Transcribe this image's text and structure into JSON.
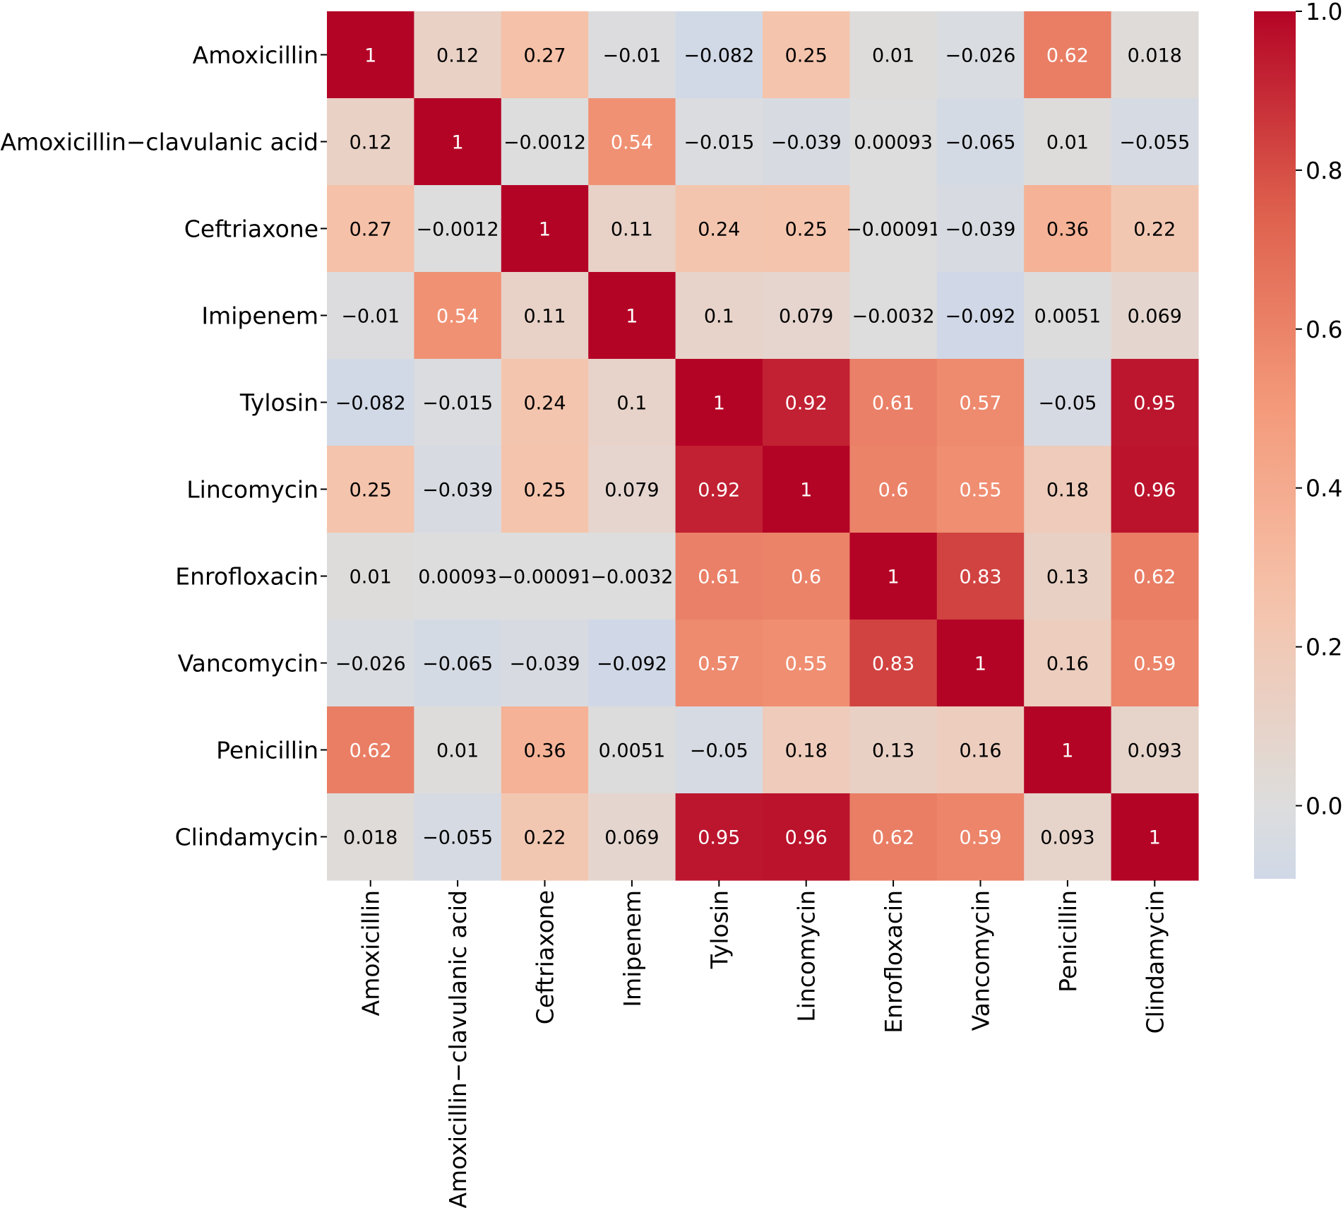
{
  "chart_data": {
    "type": "heatmap",
    "title": "",
    "xlabel": "",
    "ylabel": "",
    "rows": [
      "Amoxicillin",
      "Amoxicillin−clavulanic acid",
      "Ceftriaxone",
      "Imipenem",
      "Tylosin",
      "Lincomycin",
      "Enrofloxacin",
      "Vancomycin",
      "Penicillin",
      "Clindamycin"
    ],
    "columns": [
      "Amoxicillin",
      "Amoxicillin−clavulanic acid",
      "Ceftriaxone",
      "Imipenem",
      "Tylosin",
      "Lincomycin",
      "Enrofloxacin",
      "Vancomycin",
      "Penicillin",
      "Clindamycin"
    ],
    "values": [
      [
        1,
        0.12,
        0.27,
        -0.01,
        -0.082,
        0.25,
        0.01,
        -0.026,
        0.62,
        0.018
      ],
      [
        0.12,
        1,
        -0.0012,
        0.54,
        -0.015,
        -0.039,
        0.00093,
        -0.065,
        0.01,
        -0.055
      ],
      [
        0.27,
        -0.0012,
        1,
        0.11,
        0.24,
        0.25,
        -0.00091,
        -0.039,
        0.36,
        0.22
      ],
      [
        -0.01,
        0.54,
        0.11,
        1,
        0.1,
        0.079,
        -0.0032,
        -0.092,
        0.0051,
        0.069
      ],
      [
        -0.082,
        -0.015,
        0.24,
        0.1,
        1,
        0.92,
        0.61,
        0.57,
        -0.05,
        0.95
      ],
      [
        0.25,
        -0.039,
        0.25,
        0.079,
        0.92,
        1,
        0.6,
        0.55,
        0.18,
        0.96
      ],
      [
        0.01,
        0.00093,
        -0.00091,
        -0.0032,
        0.61,
        0.6,
        1,
        0.83,
        0.13,
        0.62
      ],
      [
        -0.026,
        -0.065,
        -0.039,
        -0.092,
        0.57,
        0.55,
        0.83,
        1,
        0.16,
        0.59
      ],
      [
        0.62,
        0.01,
        0.36,
        0.0051,
        -0.05,
        0.18,
        0.13,
        0.16,
        1,
        0.093
      ],
      [
        0.018,
        -0.055,
        0.22,
        0.069,
        0.95,
        0.96,
        0.62,
        0.59,
        0.093,
        1
      ]
    ],
    "labels": [
      [
        "1",
        "0.12",
        "0.27",
        "−0.01",
        "−0.082",
        "0.25",
        "0.01",
        "−0.026",
        "0.62",
        "0.018"
      ],
      [
        "0.12",
        "1",
        "−0.0012",
        "0.54",
        "−0.015",
        "−0.039",
        "0.00093",
        "−0.065",
        "0.01",
        "−0.055"
      ],
      [
        "0.27",
        "−0.0012",
        "1",
        "0.11",
        "0.24",
        "0.25",
        "−0.00091",
        "−0.039",
        "0.36",
        "0.22"
      ],
      [
        "−0.01",
        "0.54",
        "0.11",
        "1",
        "0.1",
        "0.079",
        "−0.0032",
        "−0.092",
        "0.0051",
        "0.069"
      ],
      [
        "−0.082",
        "−0.015",
        "0.24",
        "0.1",
        "1",
        "0.92",
        "0.61",
        "0.57",
        "−0.05",
        "0.95"
      ],
      [
        "0.25",
        "−0.039",
        "0.25",
        "0.079",
        "0.92",
        "1",
        "0.6",
        "0.55",
        "0.18",
        "0.96"
      ],
      [
        "0.01",
        "0.00093",
        "−0.00091",
        "−0.0032",
        "0.61",
        "0.6",
        "1",
        "0.83",
        "0.13",
        "0.62"
      ],
      [
        "−0.026",
        "−0.065",
        "−0.039",
        "−0.092",
        "0.57",
        "0.55",
        "0.83",
        "1",
        "0.16",
        "0.59"
      ],
      [
        "0.62",
        "0.01",
        "0.36",
        "0.0051",
        "−0.05",
        "0.18",
        "0.13",
        "0.16",
        "1",
        "0.093"
      ],
      [
        "0.018",
        "−0.055",
        "0.22",
        "0.069",
        "0.95",
        "0.96",
        "0.62",
        "0.59",
        "0.093",
        "1"
      ]
    ],
    "colormap": "coolwarm",
    "colorbar": {
      "vmin": -0.092,
      "vmax": 1.0,
      "ticks": [
        0.0,
        0.2,
        0.4,
        0.6,
        0.8,
        1.0
      ],
      "tick_labels": [
        "0.0",
        "0.2",
        "0.4",
        "0.6",
        "0.8",
        "1.0"
      ],
      "position": "right"
    },
    "colors": {
      "cold": "#3b4cc0",
      "neutral": "#dddddd",
      "warm": "#b40426",
      "light_text": "#ffffff",
      "dark_text": "#000000"
    }
  }
}
